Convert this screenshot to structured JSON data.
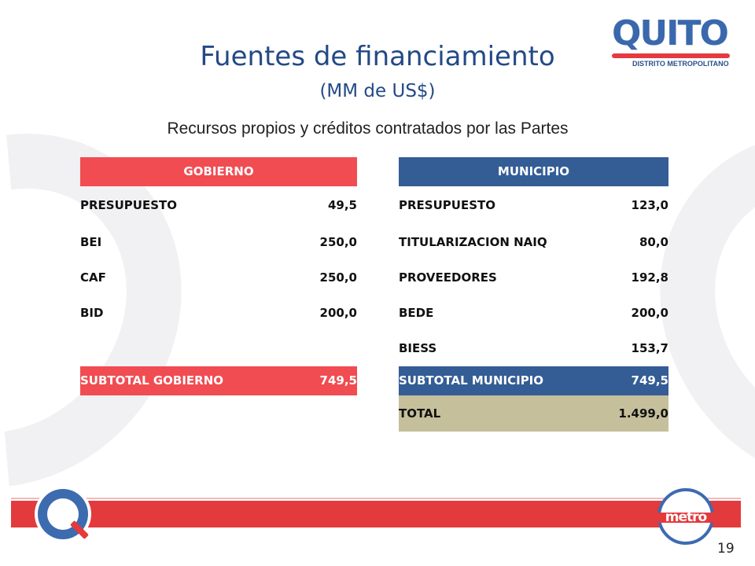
{
  "header": {
    "title": "Fuentes de financiamiento",
    "title_sub": "(MM de US$)",
    "subtitle": "Recursos propios y créditos contratados por las Partes"
  },
  "logo": {
    "word": "QUITO",
    "caption": "DISTRITO METROPOLITANO"
  },
  "gobierno": {
    "header": "GOBIERNO",
    "rows": [
      {
        "label": "PRESUPUESTO",
        "value": "49,5"
      },
      {
        "label": "BEI",
        "value": "250,0"
      },
      {
        "label": "CAF",
        "value": "250,0"
      },
      {
        "label": "BID",
        "value": "200,0"
      }
    ],
    "subtotal_label": "SUBTOTAL GOBIERNO",
    "subtotal_value": "749,5"
  },
  "municipio": {
    "header": "MUNICIPIO",
    "rows": [
      {
        "label": "PRESUPUESTO",
        "value": "123,0"
      },
      {
        "label": "TITULARIZACION NAIQ",
        "value": "80,0"
      },
      {
        "label": "PROVEEDORES",
        "value": "192,8"
      },
      {
        "label": "BEDE",
        "value": "200,0"
      },
      {
        "label": "BIESS",
        "value": "153,7"
      }
    ],
    "subtotal_label": "SUBTOTAL MUNICIPIO",
    "subtotal_value": "749,5",
    "total_label": "TOTAL",
    "total_value": "1.499,0"
  },
  "footer": {
    "metro_label": "metro",
    "page_number": "19"
  },
  "colors": {
    "gobierno": "#f04c52",
    "municipio": "#345d96",
    "total": "#c5bf9b",
    "title": "#234a86"
  }
}
